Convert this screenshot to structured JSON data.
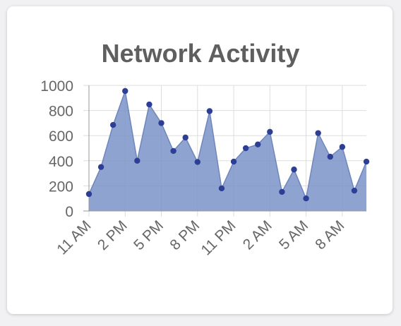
{
  "chart_data": {
    "type": "area",
    "title": "Network Activity",
    "xlabel": "",
    "ylabel": "",
    "ylim": [
      0,
      1000
    ],
    "yticks": [
      "0",
      "200",
      "400",
      "600",
      "800",
      "1000"
    ],
    "x_tick_labels": [
      "11 AM",
      "2 PM",
      "5 PM",
      "8 PM",
      "11 PM",
      "2 AM",
      "5 AM",
      "8 AM"
    ],
    "grid": true,
    "legend": "none",
    "colors": {
      "fill": "#7b93c8",
      "line": "#6f86bd",
      "point": "#2d3e96",
      "grid": "#dddddd",
      "axis": "#999999"
    },
    "series": [
      {
        "values": [
          135,
          350,
          685,
          955,
          400,
          848,
          700,
          478,
          585,
          390,
          795,
          180,
          393,
          500,
          530,
          630,
          152,
          330,
          100,
          620,
          432,
          510,
          162,
          393
        ]
      }
    ]
  }
}
